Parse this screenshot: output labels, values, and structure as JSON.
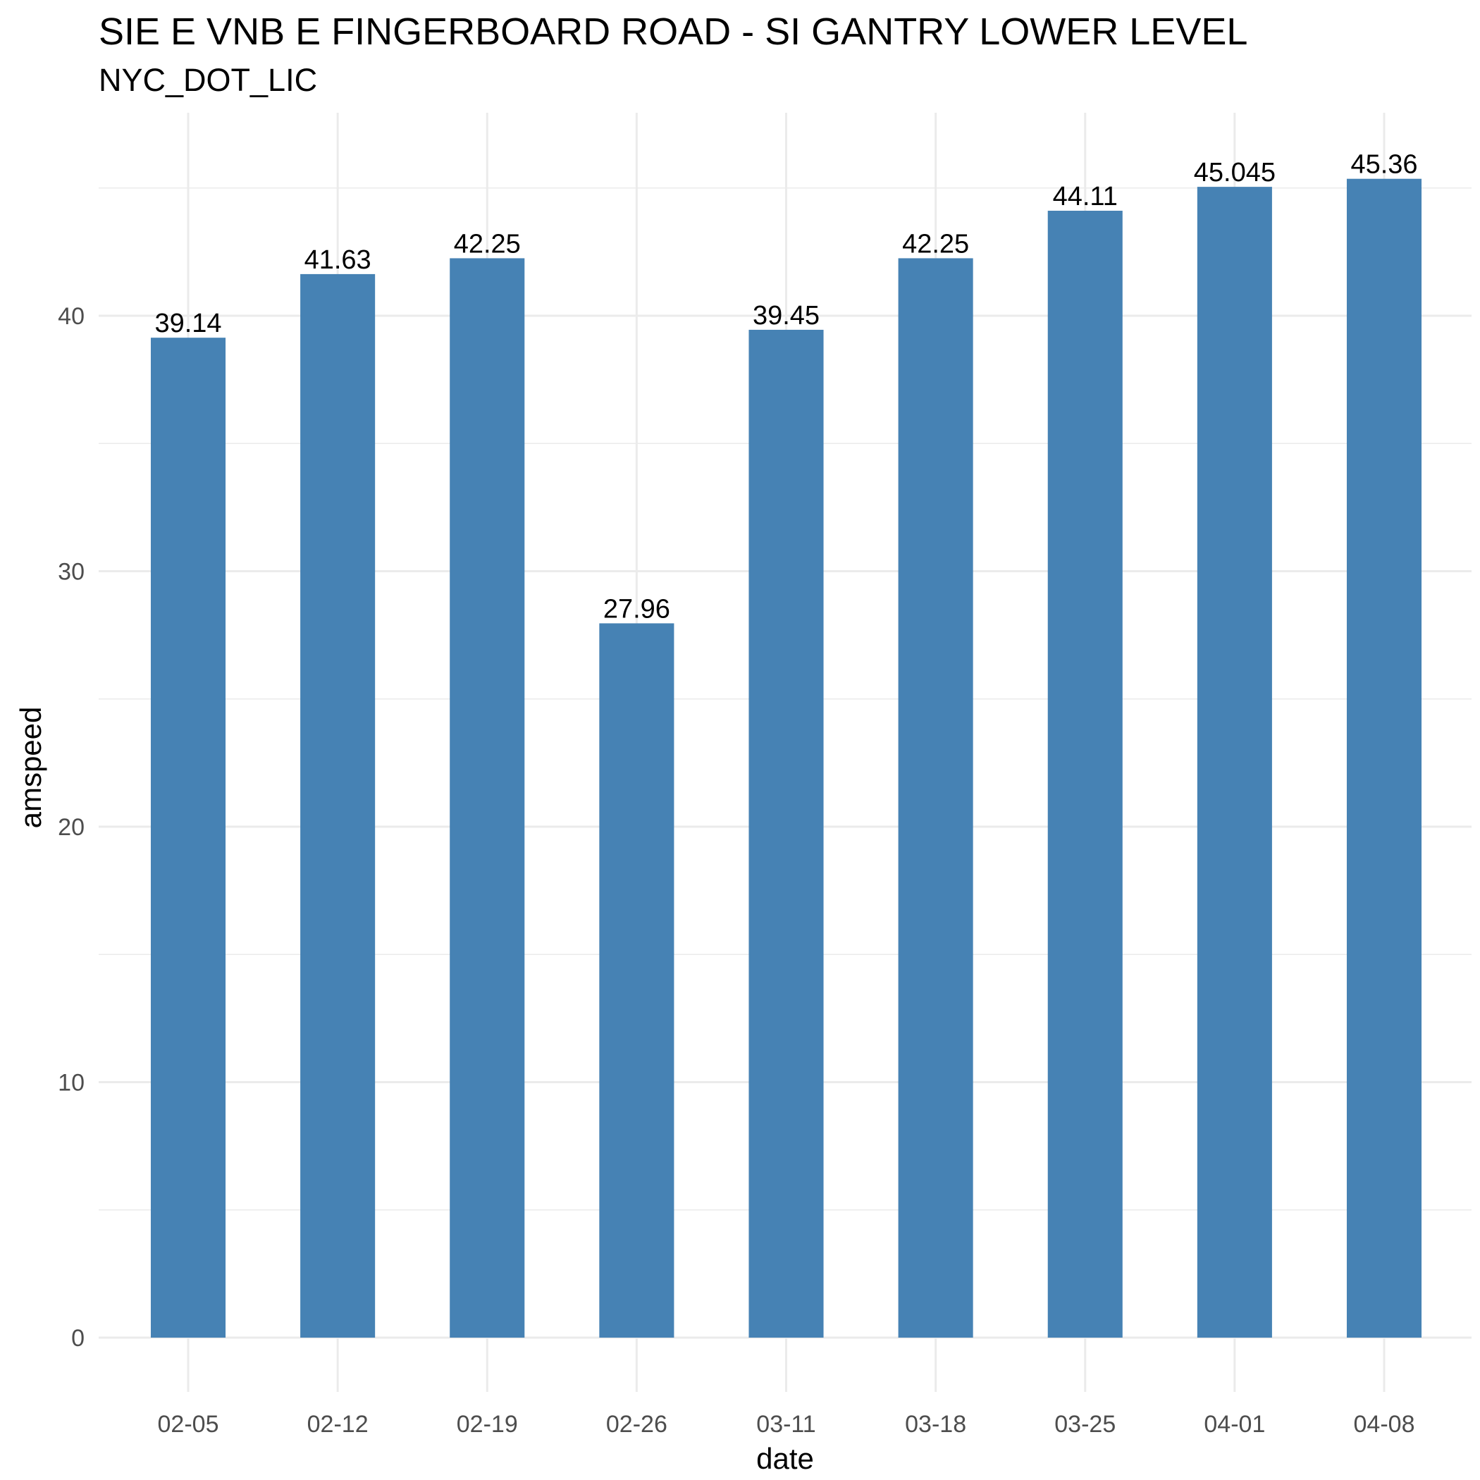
{
  "chart_data": {
    "type": "bar",
    "title": "SIE E VNB E FINGERBOARD ROAD - SI GANTRY LOWER LEVEL",
    "subtitle": "NYC_DOT_LIC",
    "xlabel": "date",
    "ylabel": "amspeed",
    "categories": [
      "02-05",
      "02-12",
      "02-19",
      "02-26",
      "03-11",
      "03-18",
      "03-25",
      "04-01",
      "04-08"
    ],
    "values": [
      39.14,
      41.63,
      42.25,
      27.96,
      39.45,
      42.25,
      44.11,
      45.045,
      45.36
    ],
    "value_labels": [
      "39.14",
      "41.63",
      "42.25",
      "27.96",
      "39.45",
      "42.25",
      "44.11",
      "45.045",
      "45.36"
    ],
    "ylim": [
      0,
      47.6
    ],
    "yticks": [
      0,
      10,
      20,
      30,
      40
    ],
    "grid": true,
    "bar_color": "#4682B4",
    "grid_color": "#ebebeb"
  }
}
